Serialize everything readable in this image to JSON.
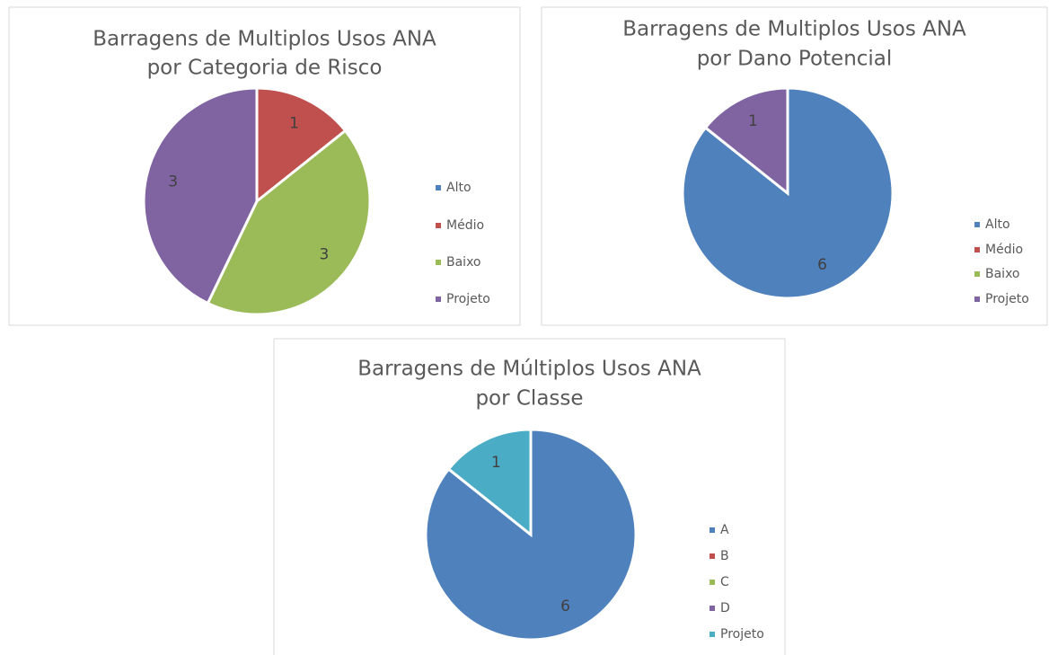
{
  "chart_data": [
    {
      "type": "pie",
      "title": [
        "Barragens de Multiplos Usos ANA",
        "por Categoria de Risco"
      ],
      "categories": [
        "Alto",
        "Médio",
        "Baixo",
        "Projeto"
      ],
      "values": [
        0,
        1,
        3,
        3
      ],
      "colors": [
        "#4f81bd",
        "#c0504d",
        "#9bbb59",
        "#8064a2"
      ],
      "legend": "right"
    },
    {
      "type": "pie",
      "title": [
        "Barragens de Multiplos Usos ANA",
        "por Dano Potencial"
      ],
      "categories": [
        "Alto",
        "Médio",
        "Baixo",
        "Projeto"
      ],
      "values": [
        6,
        0,
        0,
        1
      ],
      "colors": [
        "#4f81bd",
        "#c0504d",
        "#9bbb59",
        "#8064a2"
      ],
      "legend": "right"
    },
    {
      "type": "pie",
      "title": [
        "Barragens de Múltiplos Usos ANA",
        "por Classe"
      ],
      "categories": [
        "A",
        "B",
        "C",
        "D",
        "Projeto"
      ],
      "values": [
        6,
        0,
        0,
        0,
        1
      ],
      "colors": [
        "#4f81bd",
        "#c0504d",
        "#9bbb59",
        "#8064a2",
        "#4bacc6"
      ],
      "legend": "right"
    }
  ]
}
